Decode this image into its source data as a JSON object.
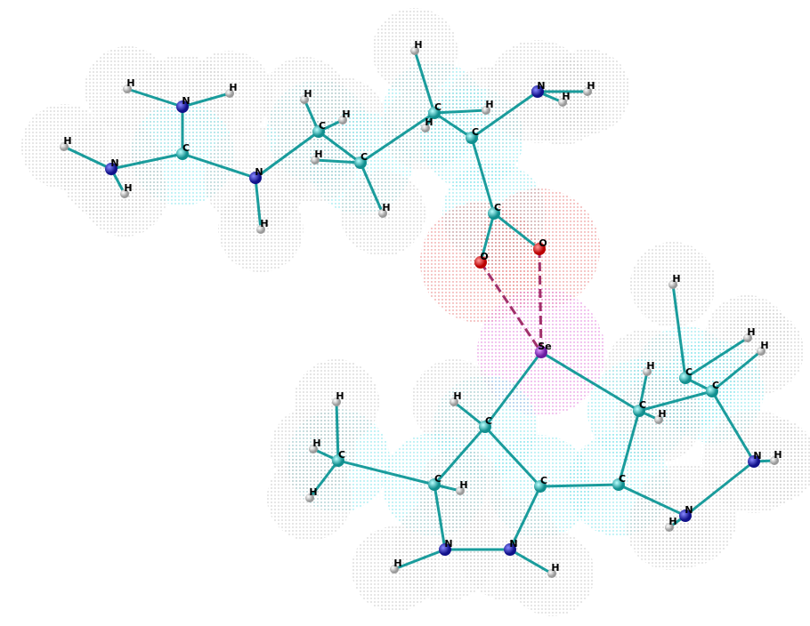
{
  "atoms": [
    "H",
    "N",
    "H",
    "C",
    "H",
    "N",
    "H",
    "N",
    "H",
    "C",
    "H",
    "H",
    "C",
    "H",
    "H",
    "C",
    "H",
    "H",
    "H",
    "C",
    "N",
    "H",
    "H",
    "C",
    "O",
    "O",
    "Se",
    "C",
    "H",
    "C",
    "H",
    "H",
    "H",
    "H",
    "C",
    "C",
    "H",
    "C",
    "C",
    "C",
    "H",
    "C",
    "H",
    "H",
    "H",
    "N",
    "H",
    "N",
    "H",
    "N",
    "H",
    "N",
    "H"
  ]
}
